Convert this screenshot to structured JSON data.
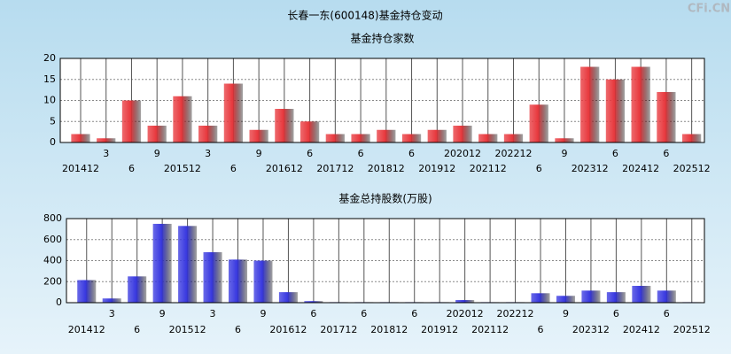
{
  "title": "长春一东(600148)基金持仓变动",
  "watermark": "CFi.CN",
  "chart_data": [
    {
      "type": "bar",
      "title": "基金持仓家数",
      "categories": [
        "201412",
        "3",
        "6",
        "9",
        "201512",
        "3",
        "6",
        "9",
        "201612",
        "6",
        "201712",
        "6",
        "201812",
        "6",
        "201912",
        "202012",
        "202112",
        "202212",
        "6",
        "9",
        "202312",
        "6",
        "202412",
        "6",
        "202512"
      ],
      "values": [
        2,
        1,
        10,
        4,
        11,
        4,
        14,
        3,
        8,
        5,
        2,
        2,
        3,
        2,
        3,
        4,
        2,
        2,
        9,
        1,
        18,
        15,
        18,
        12,
        2
      ],
      "color": "#e8383d",
      "ylim": [
        0,
        20
      ],
      "yticks": [
        0,
        5,
        10,
        15,
        20
      ],
      "grid": true
    },
    {
      "type": "bar",
      "title": "基金总持股数(万股)",
      "categories": [
        "201412",
        "3",
        "6",
        "9",
        "201512",
        "3",
        "6",
        "9",
        "201612",
        "6",
        "201712",
        "6",
        "201812",
        "6",
        "201912",
        "202012",
        "202112",
        "202212",
        "6",
        "9",
        "202312",
        "6",
        "202412",
        "6",
        "202512"
      ],
      "values": [
        215,
        40,
        250,
        750,
        730,
        480,
        410,
        400,
        100,
        15,
        5,
        5,
        5,
        5,
        5,
        25,
        5,
        5,
        90,
        65,
        115,
        100,
        160,
        115,
        5
      ],
      "color": "#3838e0",
      "ylim": [
        0,
        800
      ],
      "yticks": [
        0,
        200,
        400,
        600,
        800
      ],
      "grid": true
    }
  ]
}
